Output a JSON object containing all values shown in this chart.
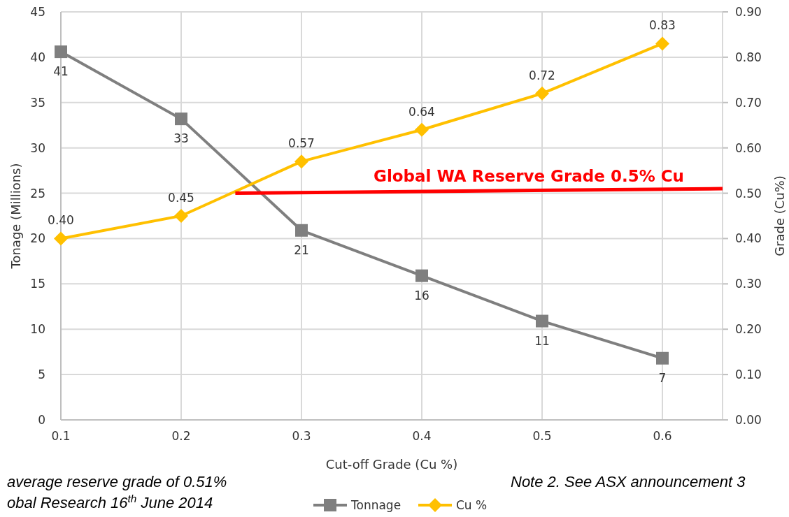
{
  "chart_data": {
    "type": "line",
    "xlabel": "Cut-off Grade (Cu %)",
    "ylabel": "Tonage (Millions)",
    "y2label": "Grade (Cu%)",
    "x": [
      0.1,
      0.2,
      0.3,
      0.4,
      0.5,
      0.6
    ],
    "xlim": [
      0.1,
      0.65
    ],
    "xticks": [
      {
        "value": 0.1,
        "label": "0.1"
      },
      {
        "value": 0.2,
        "label": "0.2"
      },
      {
        "value": 0.3,
        "label": "0.3"
      },
      {
        "value": 0.4,
        "label": "0.4"
      },
      {
        "value": 0.5,
        "label": "0.5"
      },
      {
        "value": 0.6,
        "label": "0.6"
      }
    ],
    "ylim": [
      0,
      45
    ],
    "yticks": [
      0,
      5,
      10,
      15,
      20,
      25,
      30,
      35,
      40,
      45
    ],
    "y2lim": [
      0,
      0.9
    ],
    "y2ticks": [
      {
        "value": 0,
        "label": "0.00"
      },
      {
        "value": 0.1,
        "label": "0.10"
      },
      {
        "value": 0.2,
        "label": "0.20"
      },
      {
        "value": 0.3,
        "label": "0.30"
      },
      {
        "value": 0.4,
        "label": "0.40"
      },
      {
        "value": 0.5,
        "label": "0.50"
      },
      {
        "value": 0.6,
        "label": "0.60"
      },
      {
        "value": 0.7,
        "label": "0.70"
      },
      {
        "value": 0.8,
        "label": "0.80"
      },
      {
        "value": 0.9,
        "label": "0.90"
      }
    ],
    "grid": true,
    "legend": "bottom",
    "series": [
      {
        "name": "Tonnage",
        "color": "#7f7f7f",
        "marker": "square",
        "values": [
          40.6,
          33.2,
          20.9,
          15.9,
          10.9,
          6.8
        ],
        "value_labels": [
          "41",
          "33",
          "21",
          "16",
          "11",
          "7"
        ]
      },
      {
        "name": "Cu %",
        "color": "#ffc000",
        "marker": "diamond",
        "axis": "y2",
        "values": [
          0.4,
          0.45,
          0.57,
          0.64,
          0.72,
          0.83
        ],
        "value_labels": [
          "0.40",
          "0.45",
          "0.57",
          "0.64",
          "0.72",
          "0.83"
        ]
      },
      {
        "name": "Global WA Reserve Grade 0.5% Cu",
        "color": "#ff0000",
        "marker": "none",
        "axis": "y2",
        "x": [
          0.245,
          0.65
        ],
        "values": [
          0.5,
          0.51
        ]
      }
    ],
    "annotations": [
      "average reserve grade of 0.51%",
      "obal Research 16$^{th}$ June 2014",
      "Note 2. See ASX announcement 3"
    ]
  }
}
